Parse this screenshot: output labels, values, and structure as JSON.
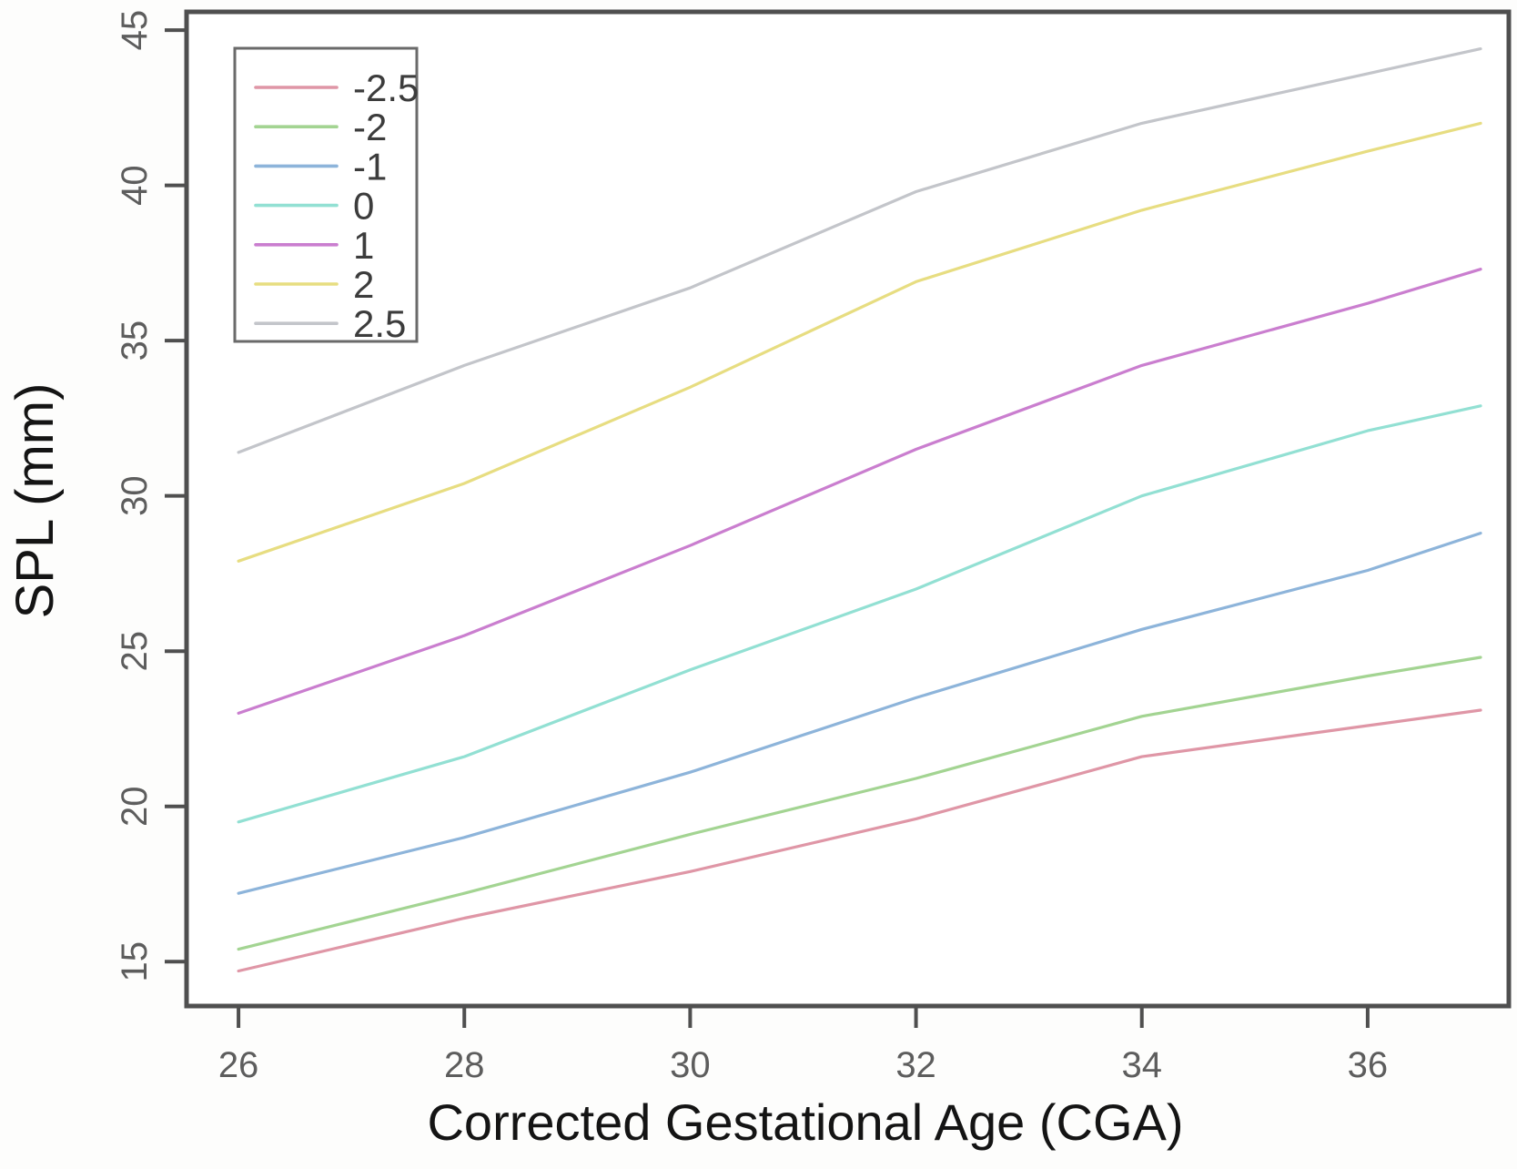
{
  "chart_data": {
    "type": "line",
    "title": "",
    "xlabel": "Corrected Gestational Age (CGA)",
    "ylabel": "SPL (mm)",
    "x": [
      26,
      28,
      30,
      32,
      34,
      36,
      37
    ],
    "series": [
      {
        "name": "-2.5",
        "color": "#df96a6",
        "values": [
          14.7,
          16.4,
          17.9,
          19.6,
          21.6,
          22.6,
          23.1
        ]
      },
      {
        "name": "-2",
        "color": "#a3d492",
        "values": [
          15.4,
          17.2,
          19.1,
          20.9,
          22.9,
          24.2,
          24.8
        ]
      },
      {
        "name": "-1",
        "color": "#8db4da",
        "values": [
          17.2,
          19.0,
          21.1,
          23.5,
          25.7,
          27.6,
          28.8
        ]
      },
      {
        "name": "0",
        "color": "#92e0d3",
        "values": [
          19.5,
          21.6,
          24.4,
          27.0,
          30.0,
          32.1,
          32.9
        ]
      },
      {
        "name": "1",
        "color": "#ca7ecf",
        "values": [
          23.0,
          25.5,
          28.4,
          31.5,
          34.2,
          36.2,
          37.3
        ]
      },
      {
        "name": "2",
        "color": "#e7dd81",
        "values": [
          27.9,
          30.4,
          33.5,
          36.9,
          39.2,
          41.1,
          42.0
        ]
      },
      {
        "name": "2.5",
        "color": "#c3c5ca",
        "values": [
          31.4,
          34.2,
          36.7,
          39.8,
          42.0,
          43.6,
          44.4
        ]
      }
    ],
    "x_ticks": [
      "26",
      "28",
      "30",
      "32",
      "34",
      "36"
    ],
    "y_ticks": [
      "15",
      "20",
      "25",
      "30",
      "35",
      "40",
      "45"
    ],
    "xlim": [
      25.54,
      37.25
    ],
    "ylim": [
      13.57,
      45.59
    ],
    "grid": false,
    "legend_position": "top-left",
    "legend_labels": [
      "-2.5",
      "-2",
      "-1",
      "0",
      "1",
      "2",
      "2.5"
    ]
  },
  "colors": {
    "axis": "#4f4f4f",
    "tick_label": "#5d5d5d",
    "axis_title": "#141414"
  }
}
